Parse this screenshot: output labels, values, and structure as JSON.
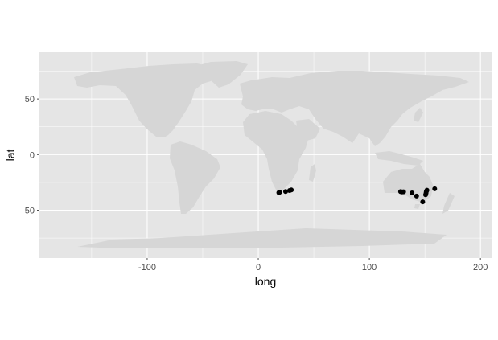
{
  "chart_data": {
    "type": "scatter",
    "title": "",
    "xlabel": "long",
    "ylabel": "lat",
    "xlim": [
      -197,
      210
    ],
    "ylim": [
      -93,
      92
    ],
    "x_ticks": [
      -100,
      0,
      100,
      200
    ],
    "x_tick_labels": [
      "-100",
      "0",
      "100",
      "200"
    ],
    "y_ticks": [
      -50,
      0,
      50
    ],
    "y_tick_labels": [
      "-50",
      "0",
      "50"
    ],
    "grid": true,
    "background": "world-map",
    "colors": {
      "panel": "#e5e5e5",
      "land": "#d6d6d6",
      "points": "#000000",
      "grid": "#ffffff"
    },
    "points": [
      {
        "x": 18.5,
        "y": -34.2
      },
      {
        "x": 19.2,
        "y": -33.8
      },
      {
        "x": 24.6,
        "y": -33.2
      },
      {
        "x": 28.2,
        "y": -32.3
      },
      {
        "x": 29.8,
        "y": -31.8
      },
      {
        "x": 128.1,
        "y": -33.3
      },
      {
        "x": 129.5,
        "y": -33.6
      },
      {
        "x": 130.8,
        "y": -33.5
      },
      {
        "x": 138.4,
        "y": -34.5
      },
      {
        "x": 142.5,
        "y": -37.3
      },
      {
        "x": 148.0,
        "y": -42.5
      },
      {
        "x": 150.6,
        "y": -36.1
      },
      {
        "x": 151.0,
        "y": -34.7
      },
      {
        "x": 151.2,
        "y": -33.4
      },
      {
        "x": 151.8,
        "y": -32.0
      },
      {
        "x": 158.8,
        "y": -30.8
      }
    ]
  }
}
